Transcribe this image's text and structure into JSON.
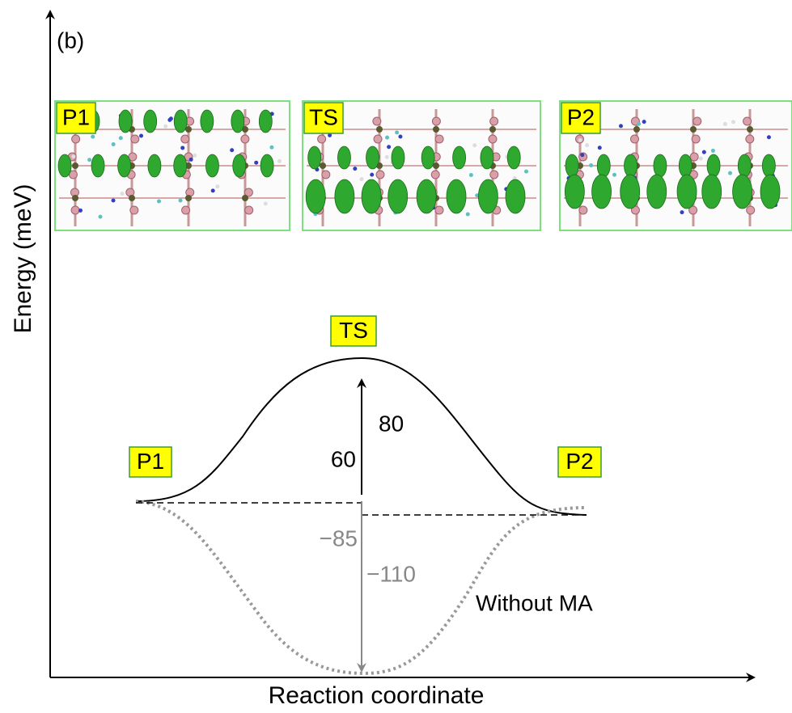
{
  "panel_label": "(b)",
  "y_axis": {
    "label": "Energy (meV)"
  },
  "x_axis": {
    "label": "Reaction coordinate"
  },
  "snapshots": [
    {
      "label": "P1"
    },
    {
      "label": "TS"
    },
    {
      "label": "P2"
    }
  ],
  "states": [
    {
      "label": "P1"
    },
    {
      "label": "TS"
    },
    {
      "label": "P2"
    }
  ],
  "barriers": [
    {
      "label": "80"
    },
    {
      "label": "60"
    },
    {
      "label": "−85"
    },
    {
      "label": "−110"
    }
  ],
  "curves": [
    {
      "label": "Without MA"
    }
  ]
}
